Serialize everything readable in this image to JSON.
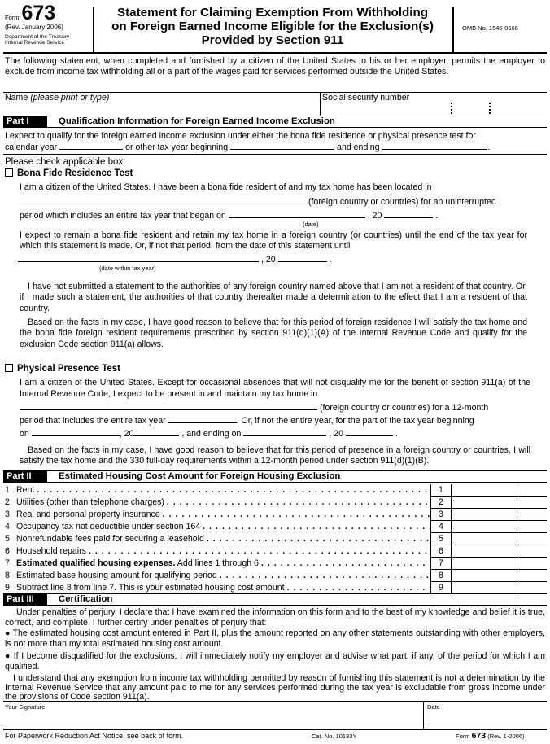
{
  "header": {
    "form_label": "Form",
    "form_number": "673",
    "revision": "(Rev. January 2006)",
    "department": "Department of the Treasury",
    "agency": "Internal Revenue Service",
    "title_lines": [
      "Statement for Claiming Exemption From Withholding",
      "on Foreign Earned Income Eligible for the Exclusion(s)",
      "Provided by Section 911"
    ],
    "omb": "OMB No. 1545-0666"
  },
  "intro": "The following statement, when completed and furnished by a citizen of the United States to his or her employer, permits the employer to exclude from income tax withholding all or a part of the wages paid for services performed outside the United States.",
  "name_field": {
    "label": "Name",
    "hint": "(please print or type)",
    "value": ""
  },
  "ssn_field": {
    "label": "Social security number",
    "value": ""
  },
  "part1": {
    "label": "Part I",
    "title": "Qualification Information for Foreign Earned Income Exclusion",
    "expect_line1": "I expect to qualify for the foreign earned income exclusion under either the bona fide residence or physical presence test for",
    "calendar_year": "calendar year",
    "or_other": "or other tax year beginning",
    "and_ending": "and ending",
    "please_check": "Please check applicable box:",
    "bona_fide": {
      "title": "Bona Fide Residence Test",
      "checked": false,
      "p1a": "I am a citizen of the United States. I have been a bona fide resident of and my tax home has been located in",
      "p1b": "(foreign country or countries) for an uninterrupted",
      "p1c": "period which includes an entire tax year that began on",
      "comma20": ", 20",
      "date_hint": "(date)",
      "p2": "I expect to remain a bona fide resident and retain my tax home in a foreign country (or countries) until the end of the tax year for which this statement is made. Or, if not that period, from the date of this statement until",
      "date_within_hint": "(date within tax year)",
      "p3": "I have not submitted a statement to the authorities of any foreign country named above that I am not a resident of that country. Or, if I made such a statement, the authorities of that country thereafter made a determination to the effect that I am a resident of that country.",
      "p4": "Based on the facts in my case, I have good reason to believe that for this period of foreign residence I will satisfy the tax home and the bona fide foreign resident requirements prescribed by section 911(d)(1)(A) of the Internal Revenue Code and qualify for the exclusion Code section 911(a) allows."
    },
    "physical": {
      "title": "Physical Presence Test",
      "checked": false,
      "p1a": "I am a citizen of the United States. Except for occasional absences that will not disqualify me for the benefit of section 911(a) of the Internal Revenue Code, I expect to be present in and maintain my tax home in",
      "p1b": "(foreign country or countries) for a 12-month",
      "p1c": "period that includes the entire tax year",
      "p1d": ". Or, if not the entire year, for the part of the tax year beginning",
      "on": "on",
      "comma20": ", 20",
      "and_ending_on": ", and ending on",
      "p2": "Based on the facts in my case, I have good reason to believe that for this period of presence in a foreign country or countries, I will satisfy the tax home and the 330 full-day requirements within a 12-month period under section 911(d)(1)(B)."
    }
  },
  "part2": {
    "label": "Part II",
    "title": "Estimated Housing Cost Amount for Foreign Housing Exclusion",
    "lines": [
      {
        "num": "1",
        "text": "Rent",
        "bold": "",
        "value": ""
      },
      {
        "num": "2",
        "text": "Utilities (other than telephone charges)",
        "bold": "",
        "value": ""
      },
      {
        "num": "3",
        "text": "Real and personal property insurance",
        "bold": "",
        "value": ""
      },
      {
        "num": "4",
        "text": "Occupancy tax not deductible under section 164",
        "bold": "",
        "value": ""
      },
      {
        "num": "5",
        "text": "Nonrefundable fees paid for securing a leasehold",
        "bold": "",
        "value": ""
      },
      {
        "num": "6",
        "text": "Household repairs",
        "bold": "",
        "value": ""
      },
      {
        "num": "7",
        "text": " Add lines 1 through 6",
        "bold": "Estimated qualified housing expenses.",
        "value": ""
      },
      {
        "num": "8",
        "text": "Estimated base housing amount for qualifying period",
        "bold": "",
        "value": ""
      },
      {
        "num": "9",
        "text": "Subtract line 8 from line 7. This is your estimated housing cost amount",
        "bold": "",
        "value": ""
      }
    ]
  },
  "part3": {
    "label": "Part III",
    "title": "Certification",
    "p1": "Under penalties of perjury, I declare that I have examined the information on this form and to the best of my knowledge and belief it is true, correct, and complete. I further certify under penalties of perjury that:",
    "b1": "The estimated housing cost amount entered in Part II, plus the amount reported on any other statements outstanding with other employers, is not more than my total estimated housing cost amount.",
    "b2": "If I become disqualified for the exclusions, I will immediately notify my employer and advise what part, if any, of the period for which I am qualified.",
    "p2": "I understand that any exemption from income tax withholding permitted by reason of furnishing this statement is not a determination by the Internal Revenue Service that any amount paid to me for any services performed during the tax year is excludable from gross income under the provisions of Code section 911(a)."
  },
  "signature": {
    "label": "Your Signature",
    "date_label": "Date"
  },
  "footer": {
    "notice": "For Paperwork Reduction Act Notice, see back of form.",
    "cat": "Cat. No. 10183Y",
    "form_label": "Form",
    "form_number": "673",
    "rev": "(Rev. 1-2006)"
  }
}
